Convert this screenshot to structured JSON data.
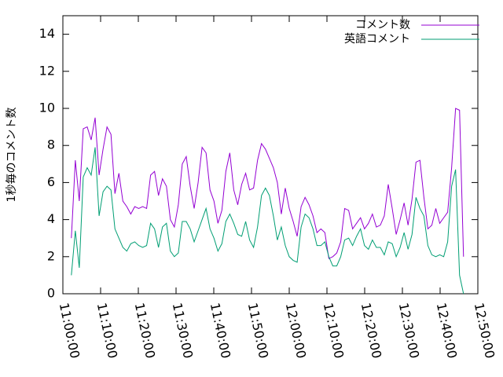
{
  "chart_data": {
    "type": "line",
    "ylabel": "1秒毎のコメント数",
    "x": [
      "11:02:15",
      "11:03:18",
      "11:04:21",
      "11:05:24",
      "11:06:27",
      "11:07:30",
      "11:08:33",
      "11:09:36",
      "11:10:39",
      "11:11:42",
      "11:12:45",
      "11:13:48",
      "11:14:51",
      "11:15:54",
      "11:16:57",
      "11:18:00",
      "11:19:03",
      "11:20:06",
      "11:21:09",
      "11:22:12",
      "11:23:15",
      "11:24:18",
      "11:25:21",
      "11:26:24",
      "11:27:27",
      "11:28:30",
      "11:29:33",
      "11:30:36",
      "11:31:39",
      "11:32:42",
      "11:33:45",
      "11:34:48",
      "11:35:51",
      "11:36:54",
      "11:37:57",
      "11:39:00",
      "11:40:03",
      "11:41:06",
      "11:42:09",
      "11:43:12",
      "11:44:15",
      "11:45:18",
      "11:46:21",
      "11:47:24",
      "11:48:27",
      "11:49:30",
      "11:50:33",
      "11:51:36",
      "11:52:39",
      "11:53:42",
      "11:54:45",
      "11:55:48",
      "11:56:51",
      "11:57:54",
      "11:58:57",
      "12:00:00",
      "12:01:03",
      "12:02:06",
      "12:03:09",
      "12:04:12",
      "12:05:15",
      "12:06:18",
      "12:07:21",
      "12:08:24",
      "12:09:27",
      "12:10:30",
      "12:11:33",
      "12:12:36",
      "12:13:39",
      "12:14:42",
      "12:15:45",
      "12:16:48",
      "12:17:51",
      "12:18:54",
      "12:19:57",
      "12:21:00",
      "12:22:03",
      "12:23:06",
      "12:24:09",
      "12:25:12",
      "12:26:15",
      "12:27:18",
      "12:28:21",
      "12:29:24",
      "12:30:27",
      "12:31:30",
      "12:32:33",
      "12:33:36",
      "12:34:39",
      "12:35:42",
      "12:36:45",
      "12:37:48",
      "12:38:51",
      "12:39:54",
      "12:40:57",
      "12:42:00",
      "12:43:03",
      "12:44:06",
      "12:45:09",
      "12:46:12"
    ],
    "series": [
      {
        "name": "コメント数",
        "color": "#9400d3",
        "values": [
          3.0,
          7.2,
          5.0,
          8.9,
          9.0,
          8.3,
          9.5,
          6.4,
          7.8,
          9.0,
          8.6,
          5.4,
          6.5,
          5.0,
          4.7,
          4.3,
          4.7,
          4.6,
          4.7,
          4.6,
          6.4,
          6.6,
          5.3,
          6.2,
          5.8,
          4.0,
          3.6,
          4.8,
          7.0,
          7.4,
          5.8,
          4.6,
          6.0,
          7.9,
          7.6,
          5.6,
          5.0,
          3.8,
          4.5,
          6.6,
          7.6,
          5.6,
          4.8,
          5.9,
          6.5,
          5.6,
          5.7,
          7.2,
          8.1,
          7.8,
          7.3,
          6.8,
          6.0,
          4.3,
          5.7,
          4.6,
          3.9,
          3.1,
          4.7,
          5.2,
          4.8,
          4.2,
          3.3,
          3.5,
          3.3,
          1.9,
          2.0,
          2.2,
          2.8,
          4.6,
          4.5,
          3.5,
          3.8,
          4.1,
          3.5,
          3.8,
          4.3,
          3.6,
          3.7,
          4.2,
          5.9,
          4.6,
          3.2,
          4.0,
          4.9,
          3.7,
          5.1,
          7.1,
          7.2,
          5.2,
          3.5,
          3.7,
          4.6,
          3.8,
          4.1,
          4.4,
          6.8,
          10.0,
          9.9,
          2.0
        ]
      },
      {
        "name": "英語コメント",
        "color": "#009e73",
        "values": [
          1.0,
          3.4,
          1.4,
          6.3,
          6.8,
          6.4,
          7.9,
          4.2,
          5.5,
          5.8,
          5.6,
          3.5,
          3.0,
          2.5,
          2.3,
          2.7,
          2.8,
          2.6,
          2.5,
          2.6,
          3.8,
          3.5,
          2.5,
          3.6,
          3.8,
          2.3,
          2.0,
          2.2,
          3.9,
          3.9,
          3.5,
          2.8,
          3.4,
          4.0,
          4.6,
          3.5,
          3.0,
          2.3,
          2.7,
          3.9,
          4.3,
          3.8,
          3.2,
          3.1,
          3.9,
          2.9,
          2.5,
          3.6,
          5.3,
          5.7,
          5.3,
          4.2,
          2.9,
          3.6,
          2.6,
          2.0,
          1.8,
          1.7,
          3.6,
          4.3,
          4.1,
          3.5,
          2.6,
          2.6,
          2.8,
          2.0,
          1.5,
          1.5,
          2.0,
          2.9,
          3.0,
          2.6,
          3.1,
          3.5,
          2.6,
          2.4,
          2.9,
          2.5,
          2.5,
          2.1,
          2.8,
          2.7,
          2.0,
          2.5,
          3.3,
          2.4,
          3.2,
          5.2,
          4.6,
          4.2,
          2.6,
          2.1,
          2.0,
          2.1,
          2.0,
          2.8,
          5.8,
          6.7,
          1.0,
          0.0
        ]
      }
    ],
    "xlim": [
      "11:00:00",
      "12:50:00"
    ],
    "xticks": [
      "11:00:00",
      "11:10:00",
      "11:20:00",
      "11:30:00",
      "11:40:00",
      "11:50:00",
      "12:00:00",
      "12:10:00",
      "12:20:00",
      "12:30:00",
      "12:40:00",
      "12:50:00"
    ],
    "ylim": [
      0,
      15
    ],
    "yticks": [
      0,
      2,
      4,
      6,
      8,
      10,
      12,
      14
    ],
    "legend": "top-right"
  }
}
